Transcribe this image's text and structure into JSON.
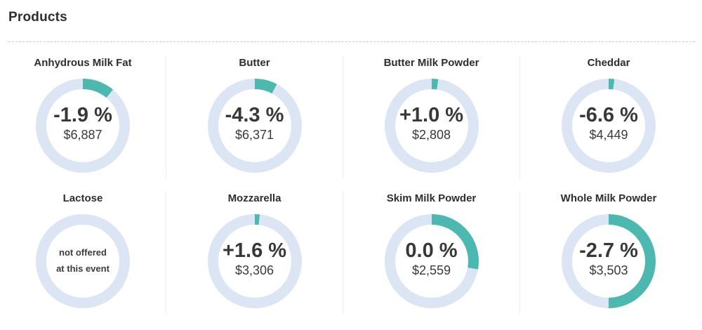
{
  "header": {
    "title": "Products"
  },
  "colors": {
    "filled_arc": "#4cb9b1",
    "ring": "#dce5f3",
    "text_dark": "#2e2e2e",
    "separator": "#ececec"
  },
  "products": [
    {
      "title": "Anhydrous Milk Fat",
      "change": "-1.9 %",
      "value": "$6,887",
      "arc_deg": 40
    },
    {
      "title": "Butter",
      "change": "-4.3 %",
      "value": "$6,371",
      "arc_deg": 28
    },
    {
      "title": "Butter Milk Powder",
      "change": "+1.0 %",
      "value": "$2,808",
      "arc_deg": 8
    },
    {
      "title": "Cheddar",
      "change": "-6.6 %",
      "value": "$4,449",
      "arc_deg": 7
    },
    {
      "title": "Lactose",
      "not_offered": true,
      "note_line1": "not offered",
      "note_line2": "at this event",
      "arc_deg": 0
    },
    {
      "title": "Mozzarella",
      "change": "+1.6 %",
      "value": "$3,306",
      "arc_deg": 6
    },
    {
      "title": "Skim Milk Powder",
      "change": "0.0 %",
      "value": "$2,559",
      "arc_deg": 100
    },
    {
      "title": "Whole Milk Powder",
      "change": "-2.7 %",
      "value": "$3,503",
      "arc_deg": 180
    }
  ],
  "chart_data": [
    {
      "type": "pie",
      "title": "Anhydrous Milk Fat",
      "slices": [
        {
          "name": "filled",
          "value": 0.111
        },
        {
          "name": "remainder",
          "value": 0.889
        }
      ],
      "center_text": [
        "-1.9 %",
        "$6,887"
      ]
    },
    {
      "type": "pie",
      "title": "Butter",
      "slices": [
        {
          "name": "filled",
          "value": 0.078
        },
        {
          "name": "remainder",
          "value": 0.922
        }
      ],
      "center_text": [
        "-4.3 %",
        "$6,371"
      ]
    },
    {
      "type": "pie",
      "title": "Butter Milk Powder",
      "slices": [
        {
          "name": "filled",
          "value": 0.022
        },
        {
          "name": "remainder",
          "value": 0.978
        }
      ],
      "center_text": [
        "+1.0 %",
        "$2,808"
      ]
    },
    {
      "type": "pie",
      "title": "Cheddar",
      "slices": [
        {
          "name": "filled",
          "value": 0.019
        },
        {
          "name": "remainder",
          "value": 0.981
        }
      ],
      "center_text": [
        "-6.6 %",
        "$4,449"
      ]
    },
    {
      "type": "pie",
      "title": "Lactose",
      "slices": [
        {
          "name": "filled",
          "value": 0
        },
        {
          "name": "remainder",
          "value": 1.0
        }
      ],
      "center_text": [
        "not offered",
        "at this event"
      ]
    },
    {
      "type": "pie",
      "title": "Mozzarella",
      "slices": [
        {
          "name": "filled",
          "value": 0.017
        },
        {
          "name": "remainder",
          "value": 0.983
        }
      ],
      "center_text": [
        "+1.6 %",
        "$3,306"
      ]
    },
    {
      "type": "pie",
      "title": "Skim Milk Powder",
      "slices": [
        {
          "name": "filled",
          "value": 0.278
        },
        {
          "name": "remainder",
          "value": 0.722
        }
      ],
      "center_text": [
        "0.0 %",
        "$2,559"
      ]
    },
    {
      "type": "pie",
      "title": "Whole Milk Powder",
      "slices": [
        {
          "name": "filled",
          "value": 0.5
        },
        {
          "name": "remainder",
          "value": 0.5
        }
      ],
      "center_text": [
        "-2.7 %",
        "$3,503"
      ]
    }
  ]
}
